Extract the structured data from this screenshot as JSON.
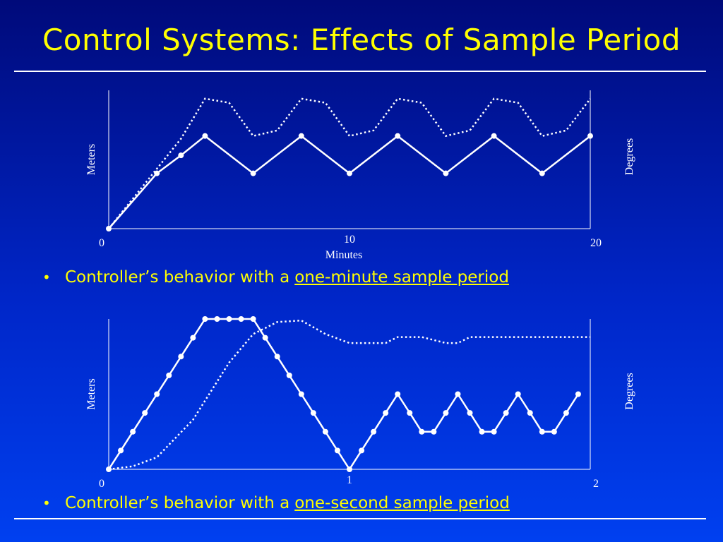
{
  "slide": {
    "title": "Control Systems: Effects of Sample Period",
    "bullet1_prefix": "Controller’s behavior with a",
    "bullet1_link": "one-minute sample period",
    "bullet2_prefix": "Controller’s behavior with a",
    "bullet2_link": "one-second sample period",
    "bullet_symbol": "•"
  },
  "colors": {
    "title": "#ffff00",
    "bullet_text": "#ffff00",
    "lines": "#ffffff"
  },
  "chart_data": [
    {
      "type": "line",
      "xlabel": "Minutes",
      "ylabel_left": "Meters",
      "ylabel_right": "Degrees",
      "x_ticks": [
        "0",
        "10",
        "20"
      ],
      "xlim": [
        0,
        20
      ],
      "ylim": [
        0,
        1
      ],
      "series": [
        {
          "style": "solid-with-markers",
          "x": [
            0,
            2,
            3,
            4,
            6,
            8,
            10,
            12,
            14,
            16,
            18,
            20
          ],
          "y": [
            0,
            0.4,
            0.53,
            0.67,
            0.4,
            0.67,
            0.4,
            0.67,
            0.4,
            0.67,
            0.4,
            0.67
          ]
        },
        {
          "style": "dotted",
          "x": [
            0,
            3,
            4,
            5,
            6,
            7,
            8,
            9,
            10,
            11,
            12,
            13,
            14,
            15,
            16,
            17,
            18,
            19,
            20
          ],
          "y": [
            0,
            0.65,
            0.94,
            0.91,
            0.67,
            0.71,
            0.94,
            0.91,
            0.67,
            0.71,
            0.94,
            0.91,
            0.67,
            0.71,
            0.94,
            0.91,
            0.67,
            0.71,
            0.94
          ]
        }
      ]
    },
    {
      "type": "line",
      "xlabel": "",
      "ylabel_left": "Meters",
      "ylabel_right": "Degrees",
      "x_ticks": [
        "0",
        "1",
        "2"
      ],
      "xlim": [
        0,
        2
      ],
      "ylim": [
        0,
        1
      ],
      "series": [
        {
          "style": "solid-with-markers",
          "x": [
            0,
            0.05,
            0.1,
            0.15,
            0.2,
            0.25,
            0.3,
            0.35,
            0.4,
            0.45,
            0.5,
            0.55,
            0.6,
            0.65,
            0.7,
            0.75,
            0.8,
            0.85,
            0.9,
            0.95,
            1.0,
            1.05,
            1.1,
            1.15,
            1.2,
            1.25,
            1.3,
            1.35,
            1.4,
            1.45,
            1.5,
            1.55,
            1.6,
            1.65,
            1.7,
            1.75,
            1.8,
            1.85,
            1.9,
            1.95
          ],
          "y": [
            0,
            0.125,
            0.25,
            0.375,
            0.5,
            0.625,
            0.75,
            0.875,
            1.0,
            1.0,
            1.0,
            1.0,
            1.0,
            0.875,
            0.75,
            0.625,
            0.5,
            0.375,
            0.25,
            0.125,
            0,
            0.125,
            0.25,
            0.375,
            0.5,
            0.375,
            0.25,
            0.25,
            0.375,
            0.5,
            0.375,
            0.25,
            0.25,
            0.375,
            0.5,
            0.375,
            0.25,
            0.25,
            0.375,
            0.5
          ]
        },
        {
          "style": "dotted",
          "x": [
            0,
            0.1,
            0.2,
            0.35,
            0.5,
            0.6,
            0.7,
            0.8,
            0.9,
            1.0,
            1.15,
            1.2,
            1.3,
            1.35,
            1.4,
            1.45,
            1.5,
            2.0
          ],
          "y": [
            0,
            0.02,
            0.08,
            0.33,
            0.71,
            0.9,
            0.98,
            0.99,
            0.9,
            0.84,
            0.84,
            0.88,
            0.88,
            0.86,
            0.84,
            0.84,
            0.88,
            0.88
          ]
        }
      ]
    }
  ]
}
